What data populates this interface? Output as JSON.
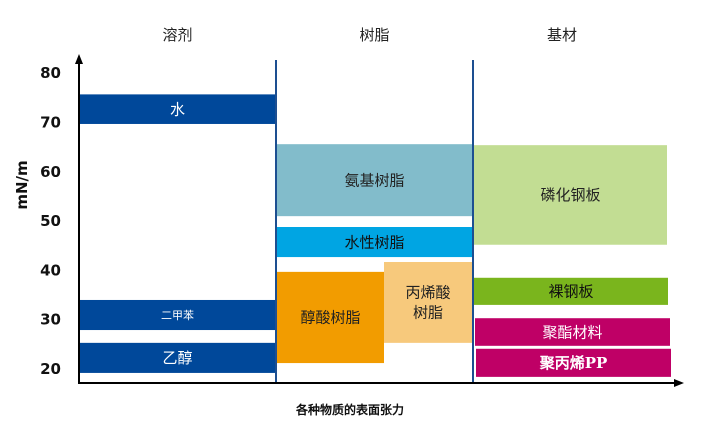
{
  "chart_data": {
    "type": "bar",
    "orientation": "floating-range",
    "xlabel": "各种物质的表面张力",
    "ylabel": "mN/m",
    "ylim": [
      20,
      80
    ],
    "yticks": [
      20,
      30,
      40,
      50,
      60,
      70,
      80
    ],
    "grid": false,
    "categories": [
      "溶剂",
      "树脂",
      "基材"
    ],
    "series": [
      {
        "name": "水",
        "category": "溶剂",
        "range": [
          69.5,
          75.5
        ],
        "color": "#00489a",
        "text_color": "#ffffff"
      },
      {
        "name": "二甲苯",
        "category": "溶剂",
        "range": [
          27.7,
          33.8
        ],
        "color": "#00489a",
        "text_color": "#ffffff"
      },
      {
        "name": "乙醇",
        "category": "溶剂",
        "range": [
          19,
          25.1
        ],
        "color": "#00489a",
        "text_color": "#ffffff"
      },
      {
        "name": "氨基树脂",
        "category": "树脂",
        "range": [
          50.8,
          65.4
        ],
        "color": "#82bccb",
        "text_color": "#222222"
      },
      {
        "name": "水性树脂",
        "category": "树脂",
        "range": [
          42.5,
          48.6
        ],
        "color": "#00a5e3",
        "text_color": "#111111"
      },
      {
        "name": "醇酸树脂",
        "category": "树脂",
        "range": [
          21,
          39.5
        ],
        "color": "#f29c00",
        "text_color": "#222222"
      },
      {
        "name": "丙烯酸\n树脂",
        "category": "树脂",
        "range": [
          25.1,
          41.5
        ],
        "color": "#f7c97c",
        "text_color": "#222222"
      },
      {
        "name": "磷化钢板",
        "category": "基材",
        "range": [
          45,
          65.2
        ],
        "color": "#c2dd93",
        "text_color": "#222222"
      },
      {
        "name": "裸钢板",
        "category": "基材",
        "range": [
          32.8,
          38.3
        ],
        "color": "#7ab51d",
        "text_color": "#111111"
      },
      {
        "name": "聚酯材料",
        "category": "基材",
        "range": [
          24.5,
          30.1
        ],
        "color": "#bf0066",
        "text_color": "#ffffff"
      },
      {
        "name": "聚丙烯PP",
        "category": "基材",
        "range": [
          18.2,
          23.9
        ],
        "color": "#bf0066",
        "text_color": "#ffffff"
      }
    ]
  }
}
